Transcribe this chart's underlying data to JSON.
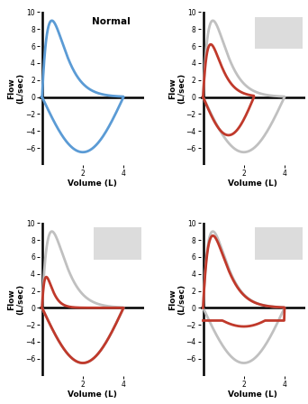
{
  "title_topleft": "Normal",
  "ylabel": "Flow\n(L/sec)",
  "xlabel": "Volume (L)",
  "ylim": [
    -8,
    10
  ],
  "xlim": [
    -0.1,
    5.0
  ],
  "yticks": [
    -6,
    -4,
    -2,
    0,
    2,
    4,
    6,
    8,
    10
  ],
  "xticks": [
    2,
    4
  ],
  "blue_color": "#5b9bd5",
  "red_color": "#c0392b",
  "gray_color": "#c0c0c0",
  "bg_rect_color": "#dcdcdc",
  "background_color": "#ffffff",
  "lw": 2.0
}
